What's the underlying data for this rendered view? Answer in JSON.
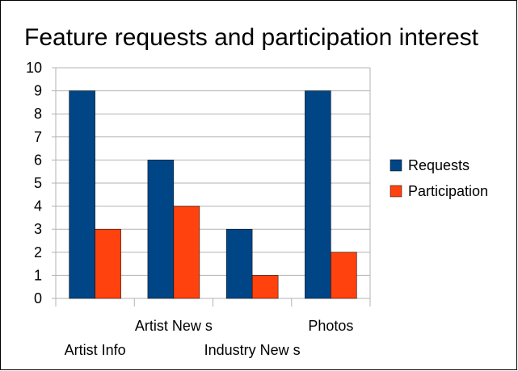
{
  "chart_data": {
    "type": "bar",
    "title": "Feature requests and participation interest",
    "categories": [
      "Artist Info",
      "Artist New s",
      "Industry New s",
      "Photos"
    ],
    "series": [
      {
        "name": "Requests",
        "values": [
          9,
          6,
          3,
          9
        ],
        "color": "#004586"
      },
      {
        "name": "Participation",
        "values": [
          3,
          4,
          1,
          2
        ],
        "color": "#ff420e"
      }
    ],
    "ylim": [
      0,
      10
    ],
    "yticks": [
      0,
      1,
      2,
      3,
      4,
      5,
      6,
      7,
      8,
      9,
      10
    ],
    "grid": true,
    "legend": "right",
    "xlabel": "",
    "ylabel": ""
  }
}
